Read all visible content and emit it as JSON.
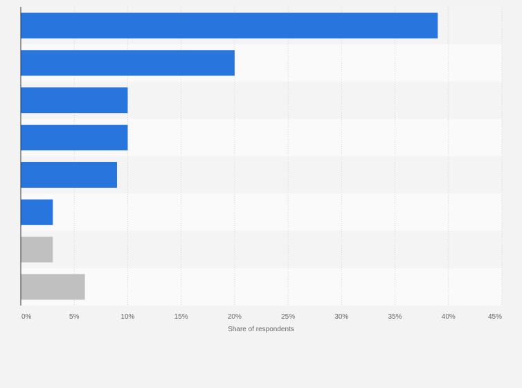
{
  "chart_data": {
    "type": "bar",
    "orientation": "horizontal",
    "categories": [
      "",
      "",
      "",
      "",
      "",
      "",
      "",
      ""
    ],
    "values": [
      39,
      20,
      10,
      10,
      9,
      3,
      3,
      6
    ],
    "xlabel": "Share of respondents",
    "ylabel": "",
    "xlim": [
      0,
      45
    ],
    "x_ticks": [
      "0%",
      "5%",
      "10%",
      "15%",
      "20%",
      "25%",
      "30%",
      "35%",
      "40%",
      "45%"
    ],
    "grid": true,
    "bar_colors": [
      "#2876dd",
      "#2876dd",
      "#2876dd",
      "#2876dd",
      "#2876dd",
      "#2876dd",
      "#c0c0c0",
      "#c0c0c0"
    ]
  }
}
